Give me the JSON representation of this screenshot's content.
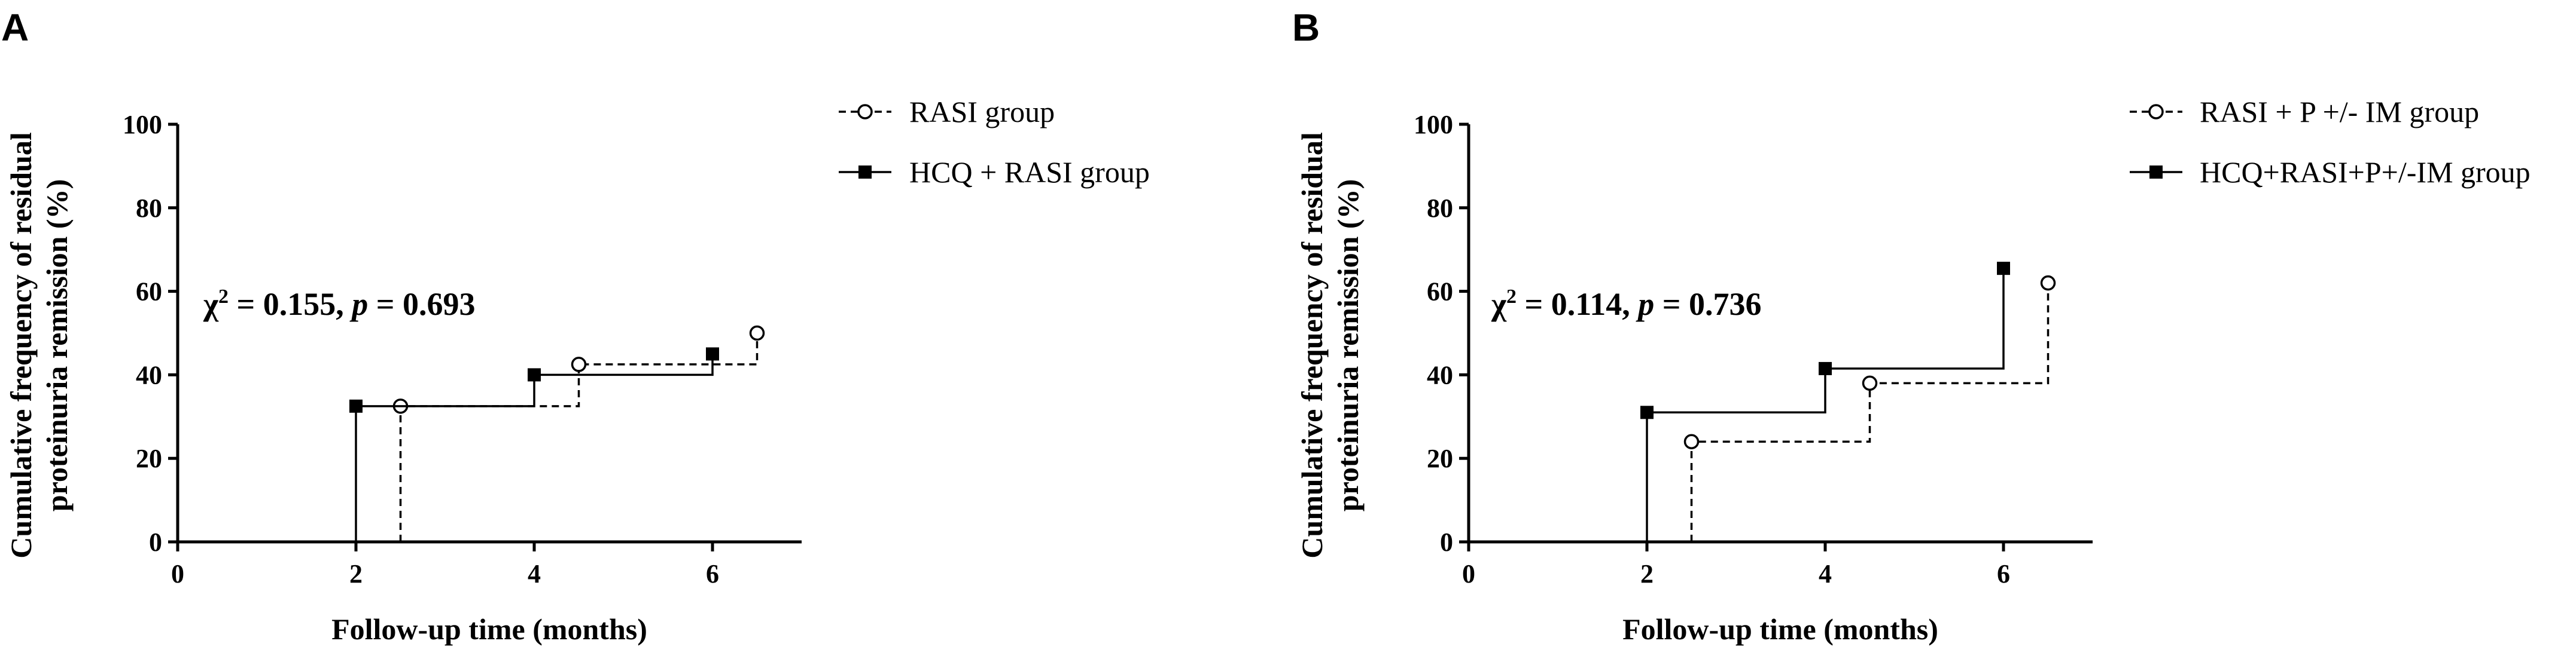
{
  "chart_data": [
    {
      "type": "line",
      "panel_label": "A",
      "xlabel": "Follow-up time (months)",
      "ylabel": [
        "Cumulative frequency of residual",
        "proteinuria remission (%)"
      ],
      "xlim": [
        0,
        7
      ],
      "ylim": [
        0,
        100
      ],
      "xticks": [
        0,
        2,
        4,
        6
      ],
      "yticks": [
        0,
        20,
        40,
        60,
        80,
        100
      ],
      "legend_position": "top-right",
      "annotation": {
        "chi_symbol": "χ",
        "sup": "2",
        "chi_value": " = 0.155",
        "sep": ",  ",
        "p_symbol": "p",
        "p_value": " = 0.693"
      },
      "series": [
        {
          "name": "RASI group",
          "style": "dashed",
          "marker": "open-circle",
          "x": [
            2.5,
            4.5,
            6.5
          ],
          "y": [
            32.5,
            42.5,
            50
          ]
        },
        {
          "name": "HCQ + RASI group",
          "style": "solid",
          "marker": "filled-square",
          "x": [
            2,
            4,
            6
          ],
          "y": [
            32.5,
            40,
            45
          ]
        }
      ]
    },
    {
      "type": "line",
      "panel_label": "B",
      "xlabel": "Follow-up time (months)",
      "ylabel": [
        "Cumulative frequency of residual",
        "proteinuria remission (%)"
      ],
      "xlim": [
        0,
        7
      ],
      "ylim": [
        0,
        100
      ],
      "xticks": [
        0,
        2,
        4,
        6
      ],
      "yticks": [
        0,
        20,
        40,
        60,
        80,
        100
      ],
      "legend_position": "top-right",
      "annotation": {
        "chi_symbol": "χ",
        "sup": "2",
        "chi_value": " = 0.114",
        "sep": ",  ",
        "p_symbol": "p",
        "p_value": " = 0.736"
      },
      "series": [
        {
          "name": "RASI + P +/- IM  group",
          "style": "dashed",
          "marker": "open-circle",
          "x": [
            2.5,
            4.5,
            6.5
          ],
          "y": [
            24,
            38,
            62
          ]
        },
        {
          "name": "HCQ+RASI+P+/-IM group",
          "style": "solid",
          "marker": "filled-square",
          "x": [
            2,
            4,
            6
          ],
          "y": [
            31,
            41.5,
            65.5
          ]
        }
      ]
    }
  ]
}
